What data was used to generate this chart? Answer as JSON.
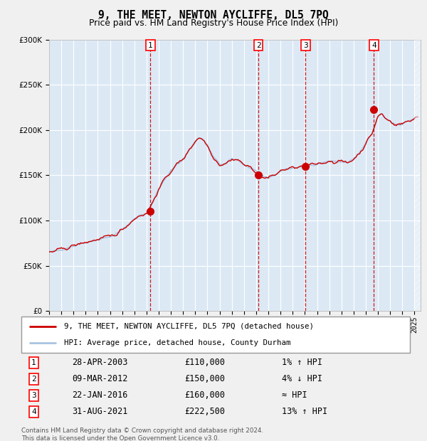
{
  "title": "9, THE MEET, NEWTON AYCLIFFE, DL5 7PQ",
  "subtitle": "Price paid vs. HM Land Registry's House Price Index (HPI)",
  "footer_line1": "Contains HM Land Registry data © Crown copyright and database right 2024.",
  "footer_line2": "This data is licensed under the Open Government Licence v3.0.",
  "legend_line1": "9, THE MEET, NEWTON AYCLIFFE, DL5 7PQ (detached house)",
  "legend_line2": "HPI: Average price, detached house, County Durham",
  "transactions": [
    {
      "num": 1,
      "date": "28-APR-2003",
      "price": 110000,
      "note": "1% ↑ HPI",
      "x_year": 2003.32
    },
    {
      "num": 2,
      "date": "09-MAR-2012",
      "price": 150000,
      "note": "4% ↓ HPI",
      "x_year": 2012.19
    },
    {
      "num": 3,
      "date": "22-JAN-2016",
      "price": 160000,
      "note": "≈ HPI",
      "x_year": 2016.06
    },
    {
      "num": 4,
      "date": "31-AUG-2021",
      "price": 222500,
      "note": "13% ↑ HPI",
      "x_year": 2021.67
    }
  ],
  "ylim": [
    0,
    300000
  ],
  "xlim_start": 1995.0,
  "xlim_end": 2025.5,
  "plot_bg_color": "#dce9f5",
  "hpi_color": "#a8c4e0",
  "price_color": "#cc0000",
  "dashed_color": "#cc0000",
  "marker_color": "#cc0000",
  "grid_color": "#ffffff",
  "fig_bg_color": "#f0f0f0",
  "anchor_x": [
    1995.0,
    1995.5,
    1996.0,
    1996.5,
    1997.0,
    1997.5,
    1998.0,
    1998.5,
    1999.0,
    1999.5,
    2000.0,
    2000.5,
    2001.0,
    2001.5,
    2002.0,
    2002.5,
    2003.0,
    2003.5,
    2004.0,
    2004.5,
    2005.0,
    2005.5,
    2006.0,
    2006.5,
    2007.0,
    2007.3,
    2007.6,
    2008.0,
    2008.5,
    2009.0,
    2009.5,
    2010.0,
    2010.5,
    2011.0,
    2011.5,
    2012.0,
    2012.5,
    2013.0,
    2013.5,
    2014.0,
    2014.5,
    2015.0,
    2015.5,
    2016.0,
    2016.5,
    2017.0,
    2017.5,
    2018.0,
    2018.5,
    2019.0,
    2019.5,
    2020.0,
    2020.5,
    2021.0,
    2021.5,
    2022.0,
    2022.3,
    2022.6,
    2023.0,
    2023.5,
    2024.0,
    2024.5,
    2025.3
  ],
  "anchor_y": [
    65000,
    66000,
    68000,
    70000,
    72000,
    74000,
    76000,
    77500,
    79000,
    80500,
    82000,
    85000,
    90000,
    96000,
    102000,
    106000,
    108000,
    120000,
    135000,
    145000,
    155000,
    162000,
    168000,
    178000,
    188000,
    192000,
    190000,
    183000,
    170000,
    162000,
    163000,
    168000,
    167000,
    162000,
    158000,
    155000,
    148000,
    147000,
    150000,
    155000,
    157000,
    158000,
    159000,
    160000,
    161000,
    163000,
    164000,
    166000,
    165000,
    165000,
    164000,
    168000,
    175000,
    185000,
    196000,
    215000,
    218000,
    213000,
    210000,
    206000,
    207000,
    210000,
    215000
  ]
}
